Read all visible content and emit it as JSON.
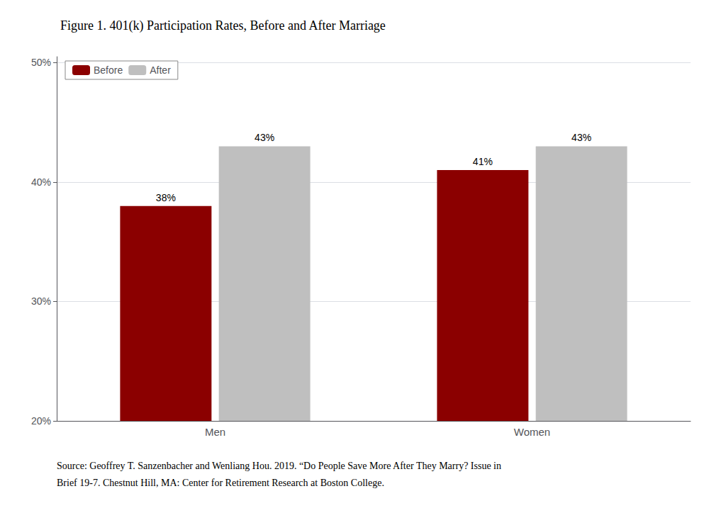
{
  "chart_data": {
    "type": "bar",
    "title": "Figure 1. 401(k) Participation Rates, Before and After Marriage",
    "categories": [
      "Men",
      "Women"
    ],
    "series": [
      {
        "name": "Before",
        "color": "#8B0000",
        "values": [
          0.38,
          0.41
        ],
        "value_labels": [
          "38%",
          "41%"
        ]
      },
      {
        "name": "After",
        "color": "#BFBFBF",
        "values": [
          0.43,
          0.43
        ],
        "value_labels": [
          "43%",
          "43%"
        ]
      }
    ],
    "ylim": [
      0.2,
      0.505
    ],
    "yticks": [
      {
        "value": 0.2,
        "label": "20%"
      },
      {
        "value": 0.3,
        "label": "30%"
      },
      {
        "value": 0.4,
        "label": "40%"
      },
      {
        "value": 0.5,
        "label": "50%"
      }
    ],
    "grid": true,
    "legend": "upper left",
    "data_labels": true,
    "annotations": [
      "Source: Geoffrey T. Sanzenbacher and Wenliang Hou. 2019. “Do People Save More After They Marry? Issue in",
      "Brief 19-7. Chestnut Hill, MA: Center for Retirement Research at Boston College."
    ]
  }
}
